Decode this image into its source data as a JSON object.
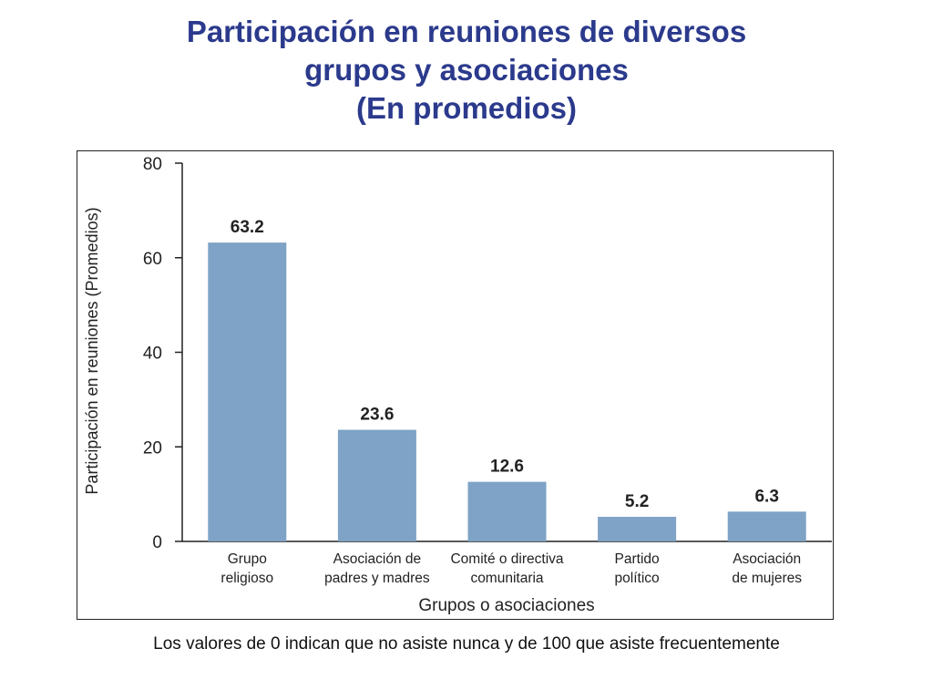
{
  "title_lines": [
    "Participación en reuniones de diversos",
    "grupos y asociaciones",
    "(En promedios)"
  ],
  "footnote": "Los valores de 0 indican que no asiste nunca y de 100 que asiste frecuentemente",
  "chart_data": {
    "type": "bar",
    "categories": [
      [
        "Grupo",
        "religioso"
      ],
      [
        "Asociación de",
        "padres y madres"
      ],
      [
        "Comité o directiva",
        "comunitaria"
      ],
      [
        "Partido",
        "político"
      ],
      [
        "Asociación",
        "de mujeres"
      ]
    ],
    "values": [
      63.2,
      23.6,
      12.6,
      5.2,
      6.3
    ],
    "value_labels": [
      "63.2",
      "23.6",
      "12.6",
      "5.2",
      "6.3"
    ],
    "xlabel": "Grupos o asociaciones",
    "ylabel": "Participación en reuniones (Promedios)",
    "ylim": [
      0,
      80
    ],
    "yticks": [
      "0",
      "20",
      "40",
      "60",
      "80"
    ],
    "bar_color": "#7ea3c6",
    "grid": false
  }
}
